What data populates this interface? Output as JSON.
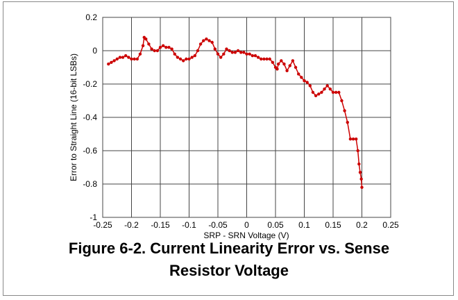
{
  "chart_data": {
    "type": "line",
    "title": "Figure 6-2. Current Linearity Error vs. Sense Resistor Voltage",
    "xlabel": "SRP - SRN Voltage (V)",
    "ylabel": "Error to Straight Line (16-bit LSBs)",
    "x": [
      -0.24,
      -0.235,
      -0.23,
      -0.225,
      -0.22,
      -0.215,
      -0.21,
      -0.205,
      -0.2,
      -0.195,
      -0.19,
      -0.185,
      -0.18,
      -0.178,
      -0.175,
      -0.17,
      -0.165,
      -0.16,
      -0.155,
      -0.15,
      -0.145,
      -0.14,
      -0.135,
      -0.13,
      -0.125,
      -0.12,
      -0.115,
      -0.11,
      -0.105,
      -0.1,
      -0.095,
      -0.09,
      -0.085,
      -0.08,
      -0.075,
      -0.07,
      -0.065,
      -0.06,
      -0.055,
      -0.05,
      -0.045,
      -0.04,
      -0.035,
      -0.03,
      -0.025,
      -0.02,
      -0.015,
      -0.01,
      -0.005,
      0,
      0.005,
      0.01,
      0.015,
      0.02,
      0.025,
      0.03,
      0.035,
      0.04,
      0.045,
      0.05,
      0.053,
      0.055,
      0.06,
      0.065,
      0.07,
      0.075,
      0.08,
      0.085,
      0.09,
      0.095,
      0.1,
      0.105,
      0.11,
      0.115,
      0.12,
      0.125,
      0.13,
      0.135,
      0.14,
      0.145,
      0.15,
      0.155,
      0.16,
      0.165,
      0.17,
      0.175,
      0.18,
      0.185,
      0.19,
      0.193,
      0.195,
      0.197,
      0.199,
      0.2
    ],
    "series": [
      {
        "name": "Error",
        "color": "#cc0000",
        "values": [
          -0.08,
          -0.07,
          -0.06,
          -0.05,
          -0.04,
          -0.04,
          -0.03,
          -0.04,
          -0.05,
          -0.05,
          -0.05,
          -0.02,
          0.03,
          0.08,
          0.07,
          0.04,
          0.01,
          0.0,
          0.0,
          0.02,
          0.03,
          0.02,
          0.02,
          0.01,
          -0.02,
          -0.04,
          -0.05,
          -0.06,
          -0.05,
          -0.05,
          -0.04,
          -0.03,
          0.0,
          0.04,
          0.06,
          0.07,
          0.06,
          0.05,
          0.01,
          -0.02,
          -0.04,
          -0.02,
          0.01,
          0.0,
          -0.01,
          -0.01,
          0.0,
          -0.01,
          -0.01,
          -0.02,
          -0.02,
          -0.03,
          -0.03,
          -0.04,
          -0.05,
          -0.05,
          -0.05,
          -0.05,
          -0.07,
          -0.1,
          -0.11,
          -0.08,
          -0.06,
          -0.08,
          -0.12,
          -0.09,
          -0.06,
          -0.1,
          -0.14,
          -0.16,
          -0.18,
          -0.19,
          -0.21,
          -0.25,
          -0.27,
          -0.26,
          -0.25,
          -0.23,
          -0.21,
          -0.23,
          -0.25,
          -0.25,
          -0.25,
          -0.3,
          -0.36,
          -0.43,
          -0.53,
          -0.53,
          -0.53,
          -0.6,
          -0.68,
          -0.73,
          -0.77,
          -0.82
        ]
      }
    ],
    "xlim": [
      -0.25,
      0.25
    ],
    "xticks": [
      -0.25,
      -0.2,
      -0.15,
      -0.1,
      -0.05,
      0,
      0.05,
      0.1,
      0.15,
      0.2,
      0.25
    ],
    "ylim": [
      -1,
      0.2
    ],
    "yticks": [
      0.2,
      0,
      -0.2,
      -0.4,
      -0.6,
      -0.8,
      -1
    ],
    "grid": true
  }
}
